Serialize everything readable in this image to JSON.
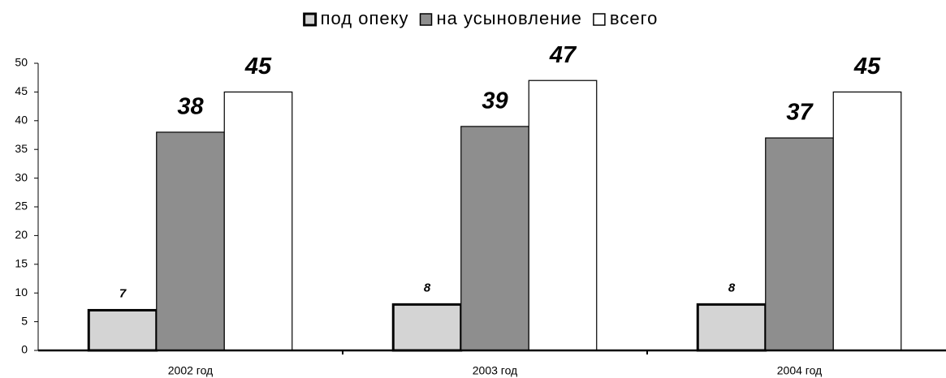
{
  "chart_data": {
    "type": "bar",
    "categories": [
      "2002 год",
      "2003 год",
      "2004 год"
    ],
    "series": [
      {
        "name": "под опеку",
        "color": "#d4d4d4",
        "values": [
          7,
          8,
          8
        ]
      },
      {
        "name": "на усыновление",
        "color": "#8e8e8e",
        "values": [
          38,
          39,
          37
        ]
      },
      {
        "name": "всего",
        "color": "#ffffff",
        "values": [
          45,
          47,
          45
        ]
      }
    ],
    "ylim": [
      0,
      50
    ],
    "yticks": [
      0,
      5,
      10,
      15,
      20,
      25,
      30,
      35,
      40,
      45,
      50
    ],
    "grid": false,
    "legend": "top"
  }
}
